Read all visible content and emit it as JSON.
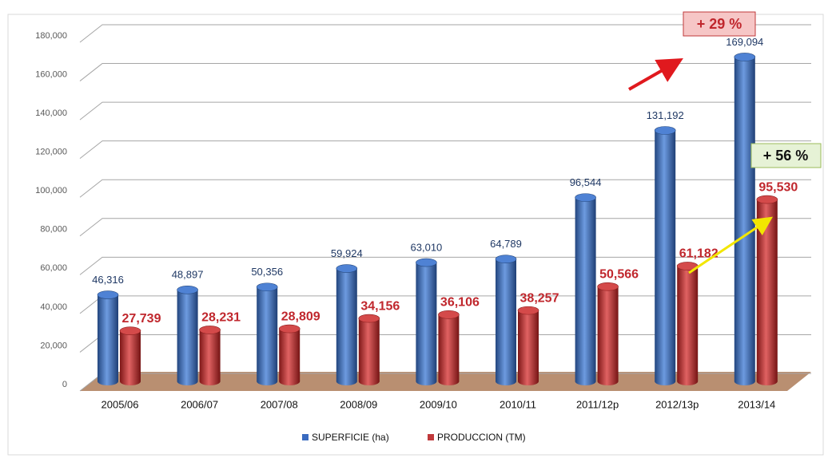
{
  "chart_data": {
    "type": "bar",
    "categories": [
      "2005/06",
      "2006/07",
      "2007/08",
      "2008/09",
      "2009/10",
      "2010/11",
      "2011/12p",
      "2012/13p",
      "2013/14"
    ],
    "series": [
      {
        "name": "SUPERFICIE (ha)",
        "color": "#3a6bc0",
        "values": [
          46316,
          48897,
          50356,
          59924,
          63010,
          64789,
          96544,
          131192,
          169094
        ],
        "value_labels": [
          "46,316",
          "48,897",
          "50,356",
          "59,924",
          "63,010",
          "64,789",
          "96,544",
          "131,192",
          "169,094"
        ]
      },
      {
        "name": "PRODUCCION (TM)",
        "color": "#c0393b",
        "values": [
          27739,
          28231,
          28809,
          34156,
          36106,
          38257,
          50566,
          61182,
          95530
        ],
        "value_labels": [
          "27,739",
          "28,231",
          "28,809",
          "34,156",
          "36,106",
          "38,257",
          "50,566",
          "61,182",
          "95,530"
        ]
      }
    ],
    "ylim": [
      0,
      180000
    ],
    "yticks": [
      0,
      {
        "value": 20000,
        "label": "20,000"
      },
      {
        "value": 40000,
        "label": "40,000"
      },
      {
        "value": 60000,
        "label": "60,000"
      },
      {
        "value": 80000,
        "label": "80,000"
      },
      {
        "value": 100000,
        "label": "100,000"
      },
      {
        "value": 120000,
        "label": "120,000"
      },
      {
        "value": 140000,
        "label": "140,000"
      },
      {
        "value": 160000,
        "label": "160,000"
      },
      {
        "value": 180000,
        "label": "180,000"
      }
    ],
    "grid": true,
    "legend": "bottom",
    "annotations": [
      "+ 29 %",
      "+ 56 %"
    ]
  }
}
